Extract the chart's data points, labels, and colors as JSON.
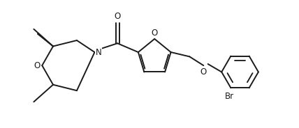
{
  "bg_color": "#ffffff",
  "line_color": "#1a1a1a",
  "line_width": 1.4,
  "font_size": 8.5,
  "fig_width": 4.28,
  "fig_height": 1.84,
  "dpi": 100,
  "xlim": [
    0,
    10
  ],
  "ylim": [
    0,
    4.3
  ]
}
